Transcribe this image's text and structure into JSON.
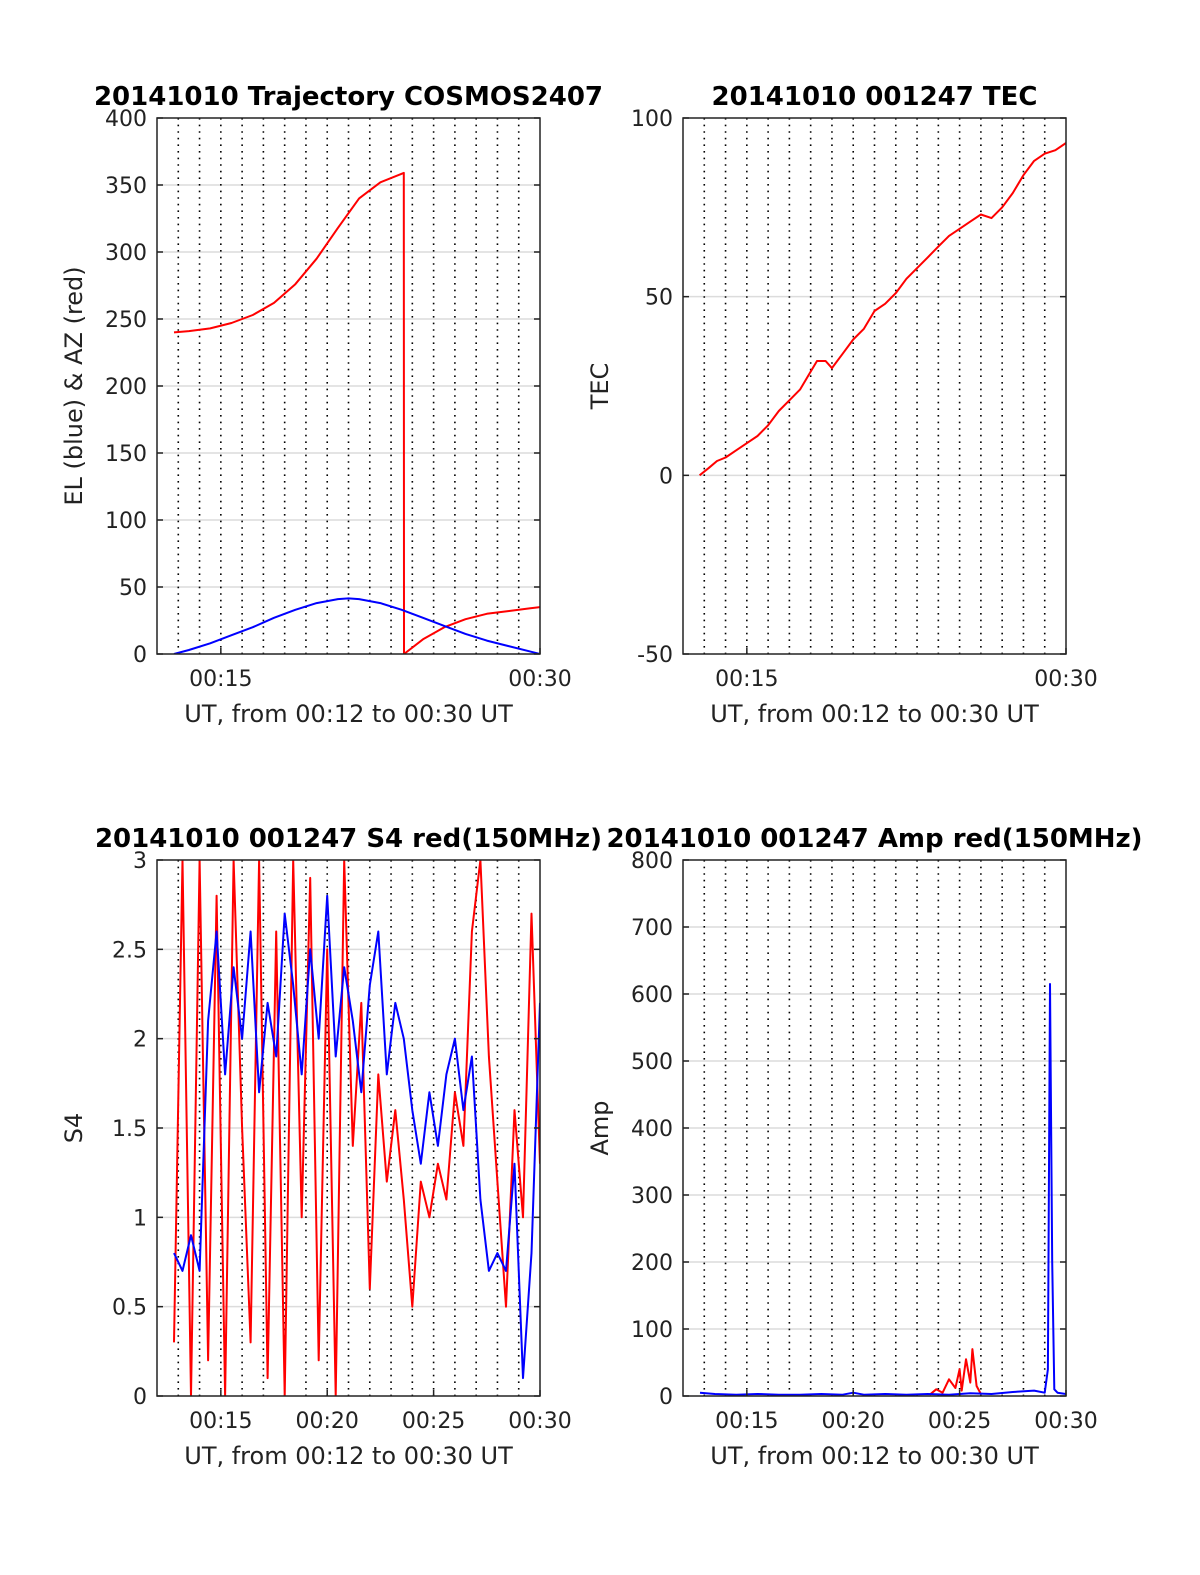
{
  "figure": {
    "background": "#ffffff"
  },
  "chart_data": [
    {
      "type": "line",
      "title": "20141010 Trajectory COSMOS2407",
      "xlabel": "UT, from 00:12 to 00:30 UT",
      "ylabel": "EL (blue) & AZ (red)",
      "xlim": [
        12.0,
        30.0
      ],
      "ylim": [
        0,
        400
      ],
      "yticks": [
        0,
        50,
        100,
        150,
        200,
        250,
        300,
        350,
        400
      ],
      "yticklabels": [
        "0",
        "50",
        "100",
        "150",
        "200",
        "250",
        "300",
        "350",
        "400"
      ],
      "xticks": [
        15,
        30
      ],
      "xticklabels": [
        "00:15",
        "00:30"
      ],
      "vgrid_minutes": [
        13,
        14,
        15,
        16,
        17,
        18,
        19,
        20,
        21,
        22,
        23,
        24,
        25,
        26,
        27,
        28,
        29
      ],
      "grid": true,
      "series": [
        {
          "color": "#ff0000",
          "x": [
            12.8,
            13.5,
            14.5,
            15.5,
            16.5,
            17.5,
            18.5,
            19.5,
            20.5,
            21.5,
            22.5,
            23.6,
            23.61,
            24.5,
            25.5,
            26.5,
            27.5,
            28.5,
            29.5,
            30.0
          ],
          "values": [
            240,
            241,
            243,
            247,
            253,
            262,
            276,
            295,
            318,
            340,
            352,
            359,
            0,
            11,
            20,
            26,
            30,
            32,
            34,
            35
          ]
        },
        {
          "color": "#0000ff",
          "x": [
            12.8,
            13.5,
            14.5,
            15.5,
            16.5,
            17.5,
            18.5,
            19.5,
            20.5,
            21.0,
            21.5,
            22.5,
            23.5,
            24.5,
            25.5,
            26.5,
            27.5,
            28.5,
            29.5,
            30.0
          ],
          "values": [
            0,
            3,
            8,
            14,
            20,
            27,
            33,
            38,
            41,
            41.5,
            41,
            38,
            33,
            27,
            21,
            15,
            10,
            6,
            2,
            0
          ]
        }
      ]
    },
    {
      "type": "line",
      "title": "20141010 001247 TEC",
      "xlabel": "UT, from 00:12 to 00:30 UT",
      "ylabel": "TEC",
      "xlim": [
        12.0,
        30.0
      ],
      "ylim": [
        -50,
        100
      ],
      "yticks": [
        -50,
        0,
        50,
        100
      ],
      "yticklabels": [
        "-50",
        "0",
        "50",
        "100"
      ],
      "xticks": [
        15,
        30
      ],
      "xticklabels": [
        "00:15",
        "00:30"
      ],
      "vgrid_minutes": [
        13,
        14,
        15,
        16,
        17,
        18,
        19,
        20,
        21,
        22,
        23,
        24,
        25,
        26,
        27,
        28,
        29
      ],
      "grid": true,
      "series": [
        {
          "color": "#ff0000",
          "x": [
            12.78,
            13.2,
            13.6,
            14.0,
            14.5,
            15.0,
            15.5,
            16.0,
            16.5,
            17.0,
            17.5,
            17.9,
            18.3,
            18.7,
            19.0,
            19.5,
            20.0,
            20.5,
            21.0,
            21.5,
            22.0,
            22.5,
            23.0,
            23.5,
            24.0,
            24.5,
            25.0,
            25.5,
            26.0,
            26.5,
            27.0,
            27.5,
            28.0,
            28.5,
            29.0,
            29.5,
            30.0
          ],
          "values": [
            0,
            2,
            4,
            5,
            7,
            9,
            11,
            14,
            18,
            21,
            24,
            28,
            32,
            32,
            30,
            34,
            38,
            41,
            46,
            48,
            51,
            55,
            58,
            61,
            64,
            67,
            69,
            71,
            73,
            72,
            75,
            79,
            84,
            88,
            90,
            91,
            93
          ]
        }
      ]
    },
    {
      "type": "line",
      "title": "20141010 001247 S4 red(150MHz)",
      "xlabel": "UT, from 00:12 to 00:30 UT",
      "ylabel": "S4",
      "xlim": [
        12.0,
        30.0
      ],
      "ylim": [
        0,
        3
      ],
      "yticks": [
        0,
        0.5,
        1,
        1.5,
        2,
        2.5,
        3
      ],
      "yticklabels": [
        "0",
        "0.5",
        "1",
        "1.5",
        "2",
        "2.5",
        "3"
      ],
      "xticks": [
        15,
        20,
        25,
        30
      ],
      "xticklabels": [
        "00:15",
        "00:20",
        "00:25",
        "00:30"
      ],
      "vgrid_minutes": [
        13,
        14,
        15,
        16,
        17,
        18,
        19,
        20,
        21,
        22,
        23,
        24,
        25,
        26,
        27,
        28,
        29
      ],
      "grid": true,
      "series": [
        {
          "color": "#ff0000",
          "x": [
            12.8,
            13.2,
            13.6,
            14.0,
            14.4,
            14.8,
            15.2,
            15.6,
            16.0,
            16.4,
            16.8,
            17.2,
            17.6,
            18.0,
            18.4,
            18.8,
            19.2,
            19.6,
            20.0,
            20.4,
            20.8,
            21.2,
            21.6,
            22.0,
            22.4,
            22.8,
            23.2,
            23.6,
            24.0,
            24.4,
            24.8,
            25.2,
            25.6,
            26.0,
            26.4,
            26.8,
            27.2,
            27.6,
            28.0,
            28.4,
            28.8,
            29.2,
            29.6,
            30.0
          ],
          "values": [
            0.3,
            3.0,
            0.0,
            3.0,
            0.2,
            2.8,
            0.0,
            3.0,
            1.5,
            0.3,
            3.0,
            0.1,
            2.6,
            0.0,
            3.0,
            1.0,
            2.9,
            0.2,
            2.5,
            0.0,
            3.0,
            1.4,
            2.2,
            0.6,
            1.8,
            1.2,
            1.6,
            1.1,
            0.5,
            1.2,
            1.0,
            1.3,
            1.1,
            1.7,
            1.4,
            2.6,
            3.0,
            1.9,
            1.2,
            0.5,
            1.6,
            1.0,
            2.7,
            1.3
          ]
        },
        {
          "color": "#0000ff",
          "x": [
            12.8,
            13.2,
            13.6,
            14.0,
            14.4,
            14.8,
            15.2,
            15.6,
            16.0,
            16.4,
            16.8,
            17.2,
            17.6,
            18.0,
            18.4,
            18.8,
            19.2,
            19.6,
            20.0,
            20.4,
            20.8,
            21.2,
            21.6,
            22.0,
            22.4,
            22.8,
            23.2,
            23.6,
            24.0,
            24.4,
            24.8,
            25.2,
            25.6,
            26.0,
            26.4,
            26.8,
            27.2,
            27.6,
            28.0,
            28.4,
            28.8,
            29.2,
            29.6,
            30.0
          ],
          "values": [
            0.8,
            0.7,
            0.9,
            0.7,
            2.1,
            2.6,
            1.8,
            2.4,
            2.0,
            2.6,
            1.7,
            2.2,
            1.9,
            2.7,
            2.3,
            1.8,
            2.5,
            2.0,
            2.8,
            1.9,
            2.4,
            2.1,
            1.7,
            2.3,
            2.6,
            1.8,
            2.2,
            2.0,
            1.6,
            1.3,
            1.7,
            1.4,
            1.8,
            2.0,
            1.6,
            1.9,
            1.1,
            0.7,
            0.8,
            0.7,
            1.3,
            0.1,
            0.8,
            2.2
          ]
        }
      ]
    },
    {
      "type": "line",
      "title": "20141010 001247 Amp red(150MHz)",
      "xlabel": "UT, from 00:12 to 00:30 UT",
      "ylabel": "Amp",
      "xlim": [
        12.0,
        30.0
      ],
      "ylim": [
        0,
        800
      ],
      "yticks": [
        0,
        100,
        200,
        300,
        400,
        500,
        600,
        700,
        800
      ],
      "yticklabels": [
        "0",
        "100",
        "200",
        "300",
        "400",
        "500",
        "600",
        "700",
        "800"
      ],
      "xticks": [
        15,
        20,
        25,
        30
      ],
      "xticklabels": [
        "00:15",
        "00:20",
        "00:25",
        "00:30"
      ],
      "vgrid_minutes": [
        13,
        14,
        15,
        16,
        17,
        18,
        19,
        20,
        21,
        22,
        23,
        24,
        25,
        26,
        27,
        28,
        29
      ],
      "grid": true,
      "series": [
        {
          "color": "#ff0000",
          "x": [
            23.6,
            23.9,
            24.2,
            24.5,
            24.8,
            25.0,
            25.1,
            25.3,
            25.5,
            25.6,
            25.8,
            26.0
          ],
          "values": [
            2,
            10,
            5,
            25,
            12,
            40,
            8,
            55,
            20,
            70,
            15,
            3
          ]
        },
        {
          "color": "#0000ff",
          "x": [
            12.8,
            13.5,
            14.5,
            15.5,
            16.5,
            17.5,
            18.5,
            19.5,
            20.0,
            20.5,
            21.5,
            22.5,
            23.5,
            24.5,
            25.5,
            26.5,
            27.5,
            28.5,
            29.0,
            29.15,
            29.25,
            29.35,
            29.45,
            29.6,
            30.0
          ],
          "values": [
            5,
            3,
            2,
            3,
            2,
            2,
            3,
            2,
            5,
            2,
            3,
            2,
            3,
            2,
            4,
            3,
            6,
            8,
            5,
            40,
            615,
            200,
            10,
            5,
            3
          ]
        }
      ]
    }
  ]
}
